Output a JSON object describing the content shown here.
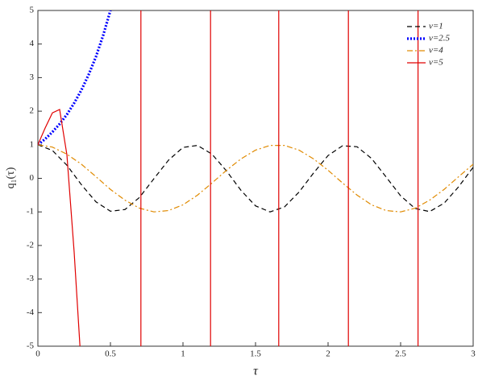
{
  "chart_data": {
    "type": "line",
    "xlabel": "τ",
    "ylabel": "q₁(τ)",
    "xlim": [
      0,
      3
    ],
    "ylim": [
      -5,
      5
    ],
    "xticks": [
      0,
      0.5,
      1,
      1.5,
      2,
      2.5,
      3
    ],
    "yticks": [
      -5,
      -4,
      -3,
      -2,
      -1,
      0,
      1,
      2,
      3,
      4,
      5
    ],
    "legend": "top-right",
    "series": [
      {
        "name": "v=1",
        "color": "#000000",
        "style": "dashed",
        "x": [
          0,
          0.1,
          0.2,
          0.3,
          0.4,
          0.5,
          0.6,
          0.7,
          0.8,
          0.9,
          1,
          1.1,
          1.2,
          1.3,
          1.4,
          1.5,
          1.6,
          1.7,
          1.8,
          1.9,
          2,
          2.1,
          2.2,
          2.3,
          2.4,
          2.5,
          2.6,
          2.7,
          2.8,
          2.9,
          3
        ],
        "values": [
          1,
          0.83,
          0.39,
          -0.19,
          -0.7,
          -0.98,
          -0.93,
          -0.57,
          -0.01,
          0.54,
          0.92,
          0.98,
          0.72,
          0.22,
          -0.36,
          -0.82,
          -1,
          -0.85,
          -0.41,
          0.16,
          0.68,
          0.97,
          0.94,
          0.59,
          0.04,
          -0.52,
          -0.9,
          -0.99,
          -0.74,
          -0.25,
          0.33
        ]
      },
      {
        "name": "v=2.5",
        "color": "#0000ff",
        "style": "dotted",
        "x": [
          0,
          0.05,
          0.1,
          0.15,
          0.2,
          0.25,
          0.3,
          0.35,
          0.4,
          0.45,
          0.5
        ],
        "values": [
          1,
          1.17,
          1.38,
          1.62,
          1.9,
          2.24,
          2.63,
          3.09,
          3.62,
          4.26,
          5
        ]
      },
      {
        "name": "v=4",
        "color": "#e08a00",
        "style": "dashdot",
        "x": [
          0,
          0.1,
          0.2,
          0.3,
          0.4,
          0.5,
          0.6,
          0.7,
          0.8,
          0.9,
          1,
          1.1,
          1.2,
          1.3,
          1.4,
          1.5,
          1.6,
          1.7,
          1.8,
          1.9,
          2,
          2.1,
          2.2,
          2.3,
          2.4,
          2.5,
          2.6,
          2.7,
          2.8,
          2.9,
          3
        ],
        "values": [
          1,
          0.93,
          0.72,
          0.42,
          0.05,
          -0.33,
          -0.65,
          -0.89,
          -1,
          -0.96,
          -0.79,
          -0.5,
          -0.14,
          0.24,
          0.58,
          0.84,
          0.98,
          0.98,
          0.84,
          0.58,
          0.24,
          -0.14,
          -0.5,
          -0.79,
          -0.96,
          -1,
          -0.89,
          -0.65,
          -0.33,
          0.05,
          0.42
        ]
      },
      {
        "name": "v=5",
        "color": "#e00000",
        "style": "solid",
        "x": [
          0,
          0.05,
          0.1,
          0.15,
          0.2,
          0.25,
          0.29,
          null,
          0.71,
          0.71,
          null,
          1.19,
          1.19,
          null,
          1.66,
          1.66,
          null,
          2.14,
          2.14,
          null,
          2.62,
          2.62
        ],
        "values": [
          1,
          1.5,
          1.95,
          2.05,
          0.7,
          -2.2,
          -5,
          null,
          5,
          -5,
          null,
          5,
          -5,
          null,
          5,
          -5,
          null,
          5,
          -5,
          null,
          5,
          -5
        ]
      }
    ]
  }
}
